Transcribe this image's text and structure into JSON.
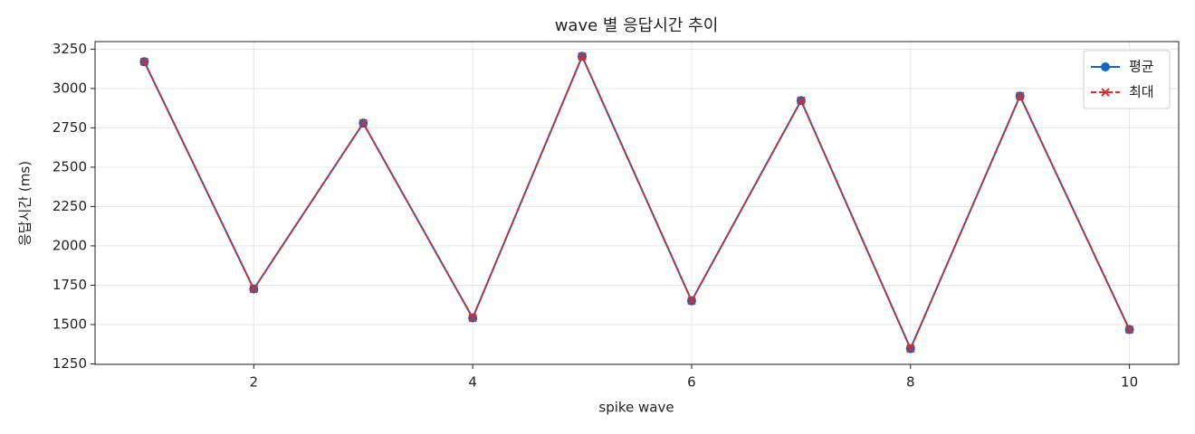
{
  "chart_data": {
    "type": "line",
    "title": "wave 별 응답시간 추이",
    "x_label": "spike wave",
    "y_label": "응답시간 (ms)",
    "x": [
      1,
      2,
      3,
      4,
      5,
      6,
      7,
      8,
      9,
      10
    ],
    "series": [
      {
        "name": "평균",
        "color": "#1565c0",
        "marker": "circle",
        "dash": false,
        "values": [
          3170,
          1726,
          2780,
          1542,
          3204,
          1651,
          2923,
          1347,
          2952,
          1468
        ]
      },
      {
        "name": "최대",
        "color": "#d32f2f",
        "marker": "x",
        "dash": true,
        "values": [
          3170,
          1726,
          2780,
          1542,
          3204,
          1651,
          2923,
          1347,
          2952,
          1468
        ]
      }
    ],
    "xlim": [
      0.55,
      10.45
    ],
    "ylim": [
      1247,
      3298
    ],
    "xticks": [
      2,
      4,
      6,
      8,
      10
    ],
    "yticks": [
      1250,
      1500,
      1750,
      2000,
      2250,
      2500,
      2750,
      3000,
      3250
    ],
    "grid": true,
    "legend": "upper right"
  }
}
